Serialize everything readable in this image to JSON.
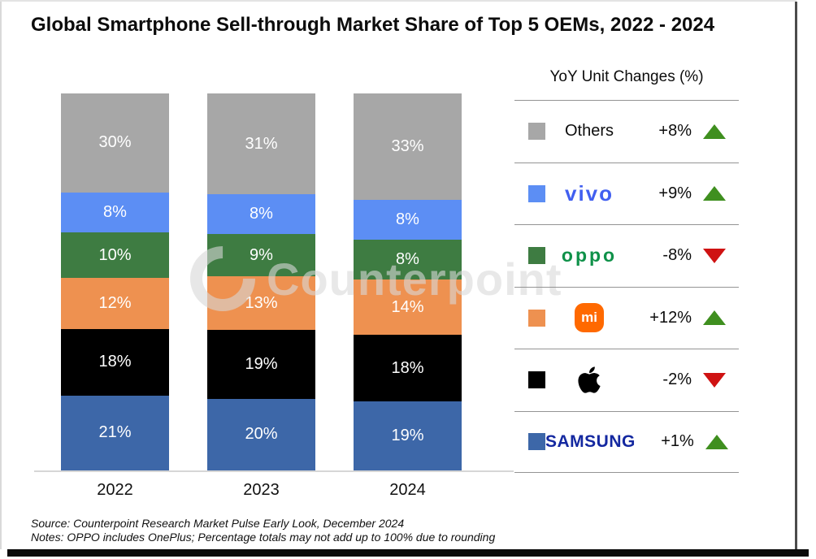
{
  "title": "Global Smartphone Sell-through Market Share of Top 5 OEMs, 2022 - 2024",
  "watermark_text": "Counterpoint",
  "legend": {
    "title": "YoY Unit Changes (%)",
    "arrow_colors": {
      "up": "#3f8f1f",
      "down": "#cf1212"
    },
    "rows": [
      {
        "label": "Others",
        "change": "+8%",
        "direction": "up"
      },
      {
        "label": "vivo",
        "change": "+9%",
        "direction": "up"
      },
      {
        "label": "oppo",
        "change": "-8%",
        "direction": "down"
      },
      {
        "label": "mi",
        "change": "+12%",
        "direction": "up"
      },
      {
        "label": "Apple",
        "change": "-2%",
        "direction": "down"
      },
      {
        "label": "SAMSUNG",
        "change": "+1%",
        "direction": "up"
      }
    ]
  },
  "chart_data": {
    "type": "bar",
    "stacked": true,
    "title": "Global Smartphone Sell-through Market Share of Top 5 OEMs, 2022 - 2024",
    "categories": [
      "2022",
      "2023",
      "2024"
    ],
    "series": [
      {
        "name": "Others",
        "color": "#a7a7a7",
        "values": [
          30,
          31,
          33
        ]
      },
      {
        "name": "vivo",
        "color": "#5c8ef4",
        "values": [
          8,
          8,
          8
        ]
      },
      {
        "name": "OPPO",
        "color": "#3e7c42",
        "values": [
          10,
          9,
          8
        ]
      },
      {
        "name": "Xiaomi",
        "color": "#ee9150",
        "values": [
          12,
          13,
          14
        ]
      },
      {
        "name": "Apple",
        "color": "#000000",
        "values": [
          18,
          19,
          18
        ]
      },
      {
        "name": "Samsung",
        "color": "#3d67a8",
        "values": [
          21,
          20,
          19
        ]
      }
    ],
    "value_suffix": "%",
    "ylim": [
      0,
      100
    ],
    "grid": false,
    "legend_position": "right",
    "legend_title": "YoY Unit Changes (%)",
    "yoy_unit_changes": {
      "Others": "+8%",
      "vivo": "+9%",
      "OPPO": "-8%",
      "Xiaomi": "+12%",
      "Apple": "-2%",
      "Samsung": "+1%"
    }
  },
  "footer": {
    "source": "Source: Counterpoint Research Market Pulse Early Look, December 2024",
    "notes": "Notes: OPPO includes OnePlus; Percentage totals may not add up to 100% due to rounding"
  }
}
